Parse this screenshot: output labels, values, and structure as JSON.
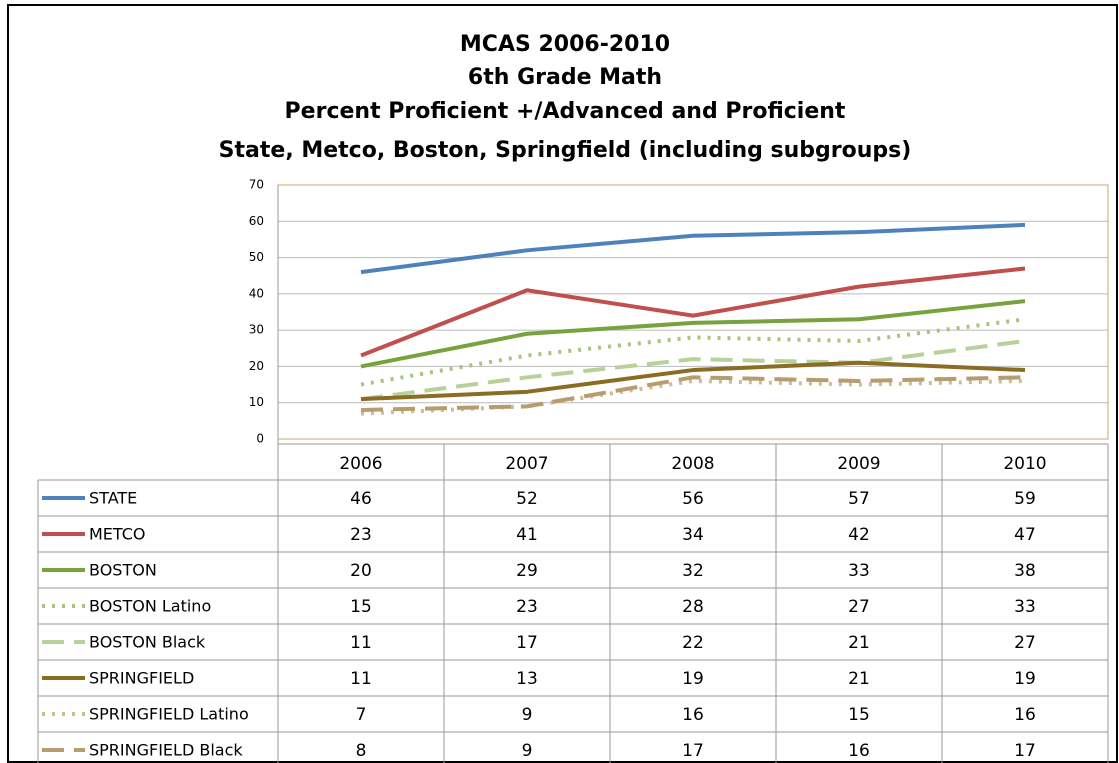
{
  "chart_data": {
    "type": "line",
    "title": [
      "MCAS 2006-2010",
      "6th Grade Math",
      "Percent Proficient +/Advanced and Proficient",
      "State, Metco, Boston, Springfield (including subgroups)"
    ],
    "categories": [
      "2006",
      "2007",
      "2008",
      "2009",
      "2010"
    ],
    "ylim": [
      0,
      70
    ],
    "yticks": [
      0,
      10,
      20,
      30,
      40,
      50,
      60,
      70
    ],
    "grid": true,
    "series": [
      {
        "name": "STATE",
        "color": "#4f81bd",
        "dash": "solid",
        "values": [
          46,
          52,
          56,
          57,
          59
        ]
      },
      {
        "name": "METCO",
        "color": "#c0504d",
        "dash": "solid",
        "values": [
          23,
          41,
          34,
          42,
          47
        ]
      },
      {
        "name": "BOSTON",
        "color": "#77a33e",
        "dash": "solid",
        "values": [
          20,
          29,
          32,
          33,
          38
        ]
      },
      {
        "name": "BOSTON Latino",
        "color": "#a9c47f",
        "dash": "dotted",
        "values": [
          15,
          23,
          28,
          27,
          33
        ]
      },
      {
        "name": "BOSTON Black",
        "color": "#b8d09a",
        "dash": "dashed",
        "values": [
          11,
          17,
          22,
          21,
          27
        ]
      },
      {
        "name": "SPRINGFIELD",
        "color": "#8c6b23",
        "dash": "solid",
        "values": [
          11,
          13,
          19,
          21,
          19
        ]
      },
      {
        "name": "SPRINGFIELD Latino",
        "color": "#cdbd90",
        "dash": "dotted",
        "values": [
          7,
          9,
          16,
          15,
          16
        ]
      },
      {
        "name": "SPRINGFIELD Black",
        "color": "#b89c70",
        "dash": "dashed",
        "values": [
          8,
          9,
          17,
          16,
          17
        ]
      }
    ]
  }
}
